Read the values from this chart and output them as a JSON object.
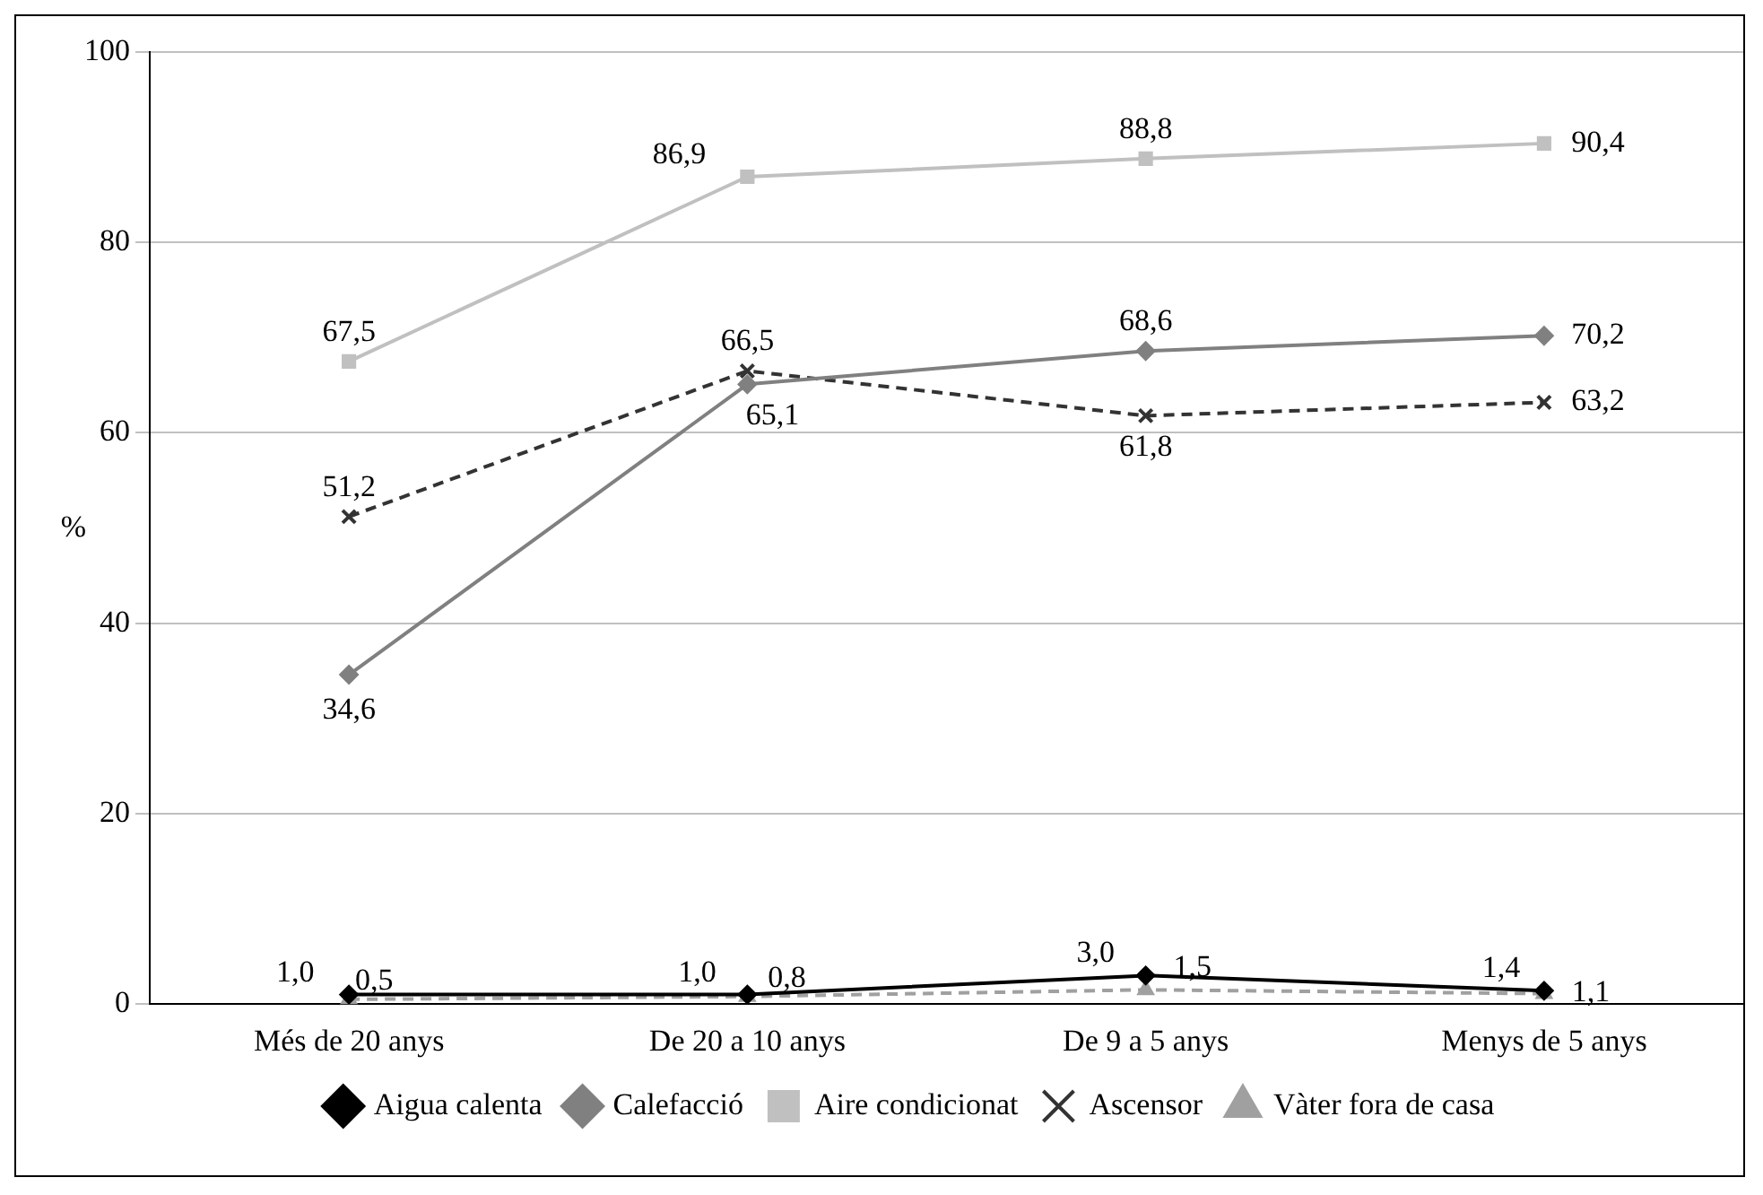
{
  "chart_data": {
    "type": "line",
    "ylabel": "%",
    "categories": [
      "Més de 20 anys",
      "De 20 a 10 anys",
      "De 9 a 5 anys",
      "Menys de 5 anys"
    ],
    "series": [
      {
        "name": "Aigua calenta",
        "color": "#000000",
        "marker": "diamond",
        "line_style": "solid",
        "values": [
          1.0,
          1.0,
          3.0,
          1.4
        ],
        "value_labels": [
          "1,0",
          "1,0",
          "3,0",
          "1,4"
        ]
      },
      {
        "name": "Calefacció",
        "color": "#808080",
        "marker": "diamond",
        "line_style": "solid",
        "values": [
          34.6,
          65.1,
          68.6,
          70.2
        ],
        "value_labels": [
          "34,6",
          "65,1",
          "68,6",
          "70,2"
        ]
      },
      {
        "name": "Aire condicionat",
        "color": "#c0c0c0",
        "marker": "square",
        "line_style": "solid",
        "values": [
          67.5,
          86.9,
          88.8,
          90.4
        ],
        "value_labels": [
          "67,5",
          "86,9",
          "88,8",
          "90,4"
        ]
      },
      {
        "name": "Ascensor",
        "color": "#333333",
        "marker": "cross",
        "line_style": "dashed",
        "values": [
          51.2,
          66.5,
          61.8,
          63.2
        ],
        "value_labels": [
          "51,2",
          "66,5",
          "61,8",
          "63,2"
        ]
      },
      {
        "name": "Vàter fora de casa",
        "color": "#a0a0a0",
        "marker": "triangle",
        "line_style": "dashed",
        "values": [
          0.5,
          0.8,
          1.5,
          1.1
        ],
        "value_labels": [
          "0,5",
          "0,8",
          "1,5",
          "1,1"
        ]
      }
    ],
    "ylim": [
      0,
      100
    ],
    "yticks": [
      0,
      20,
      40,
      60,
      80,
      100
    ],
    "grid": "y",
    "legend": "bottom"
  }
}
